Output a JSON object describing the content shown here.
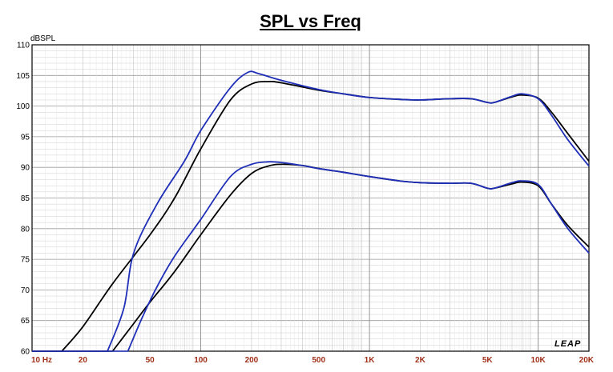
{
  "chart_data": {
    "type": "line",
    "title": "SPL vs Freq",
    "ylabel": "dBSPL",
    "xlabel": "",
    "x_scale": "log",
    "xlim": [
      10,
      20000
    ],
    "ylim": [
      60,
      110
    ],
    "grid": true,
    "brand": "LEAP",
    "y_ticks": [
      60,
      65,
      70,
      75,
      80,
      85,
      90,
      95,
      100,
      105,
      110
    ],
    "x_ticks": [
      {
        "value": 10,
        "label": "10 Hz"
      },
      {
        "value": 20,
        "label": "20"
      },
      {
        "value": 50,
        "label": "50"
      },
      {
        "value": 100,
        "label": "100"
      },
      {
        "value": 200,
        "label": "200"
      },
      {
        "value": 500,
        "label": "500"
      },
      {
        "value": 1000,
        "label": "1K"
      },
      {
        "value": 2000,
        "label": "2K"
      },
      {
        "value": 5000,
        "label": "5K"
      },
      {
        "value": 10000,
        "label": "10K"
      },
      {
        "value": 20000,
        "label": "20K"
      }
    ],
    "series": [
      {
        "color": "#000000",
        "points": [
          [
            15,
            60
          ],
          [
            20,
            64
          ],
          [
            30,
            71
          ],
          [
            50,
            79
          ],
          [
            70,
            85
          ],
          [
            100,
            93
          ],
          [
            150,
            101
          ],
          [
            200,
            103.6
          ],
          [
            250,
            104
          ],
          [
            300,
            103.8
          ],
          [
            500,
            102.6
          ],
          [
            700,
            102
          ],
          [
            1000,
            101.4
          ],
          [
            1500,
            101.1
          ],
          [
            2000,
            101
          ],
          [
            3000,
            101.2
          ],
          [
            4000,
            101.2
          ],
          [
            5000,
            100.6
          ],
          [
            5500,
            100.6
          ],
          [
            7000,
            101.5
          ],
          [
            8000,
            101.8
          ],
          [
            10000,
            101.3
          ],
          [
            12000,
            99
          ],
          [
            15000,
            95.5
          ],
          [
            20000,
            91
          ]
        ]
      },
      {
        "color": "#1f2fb8",
        "points": [
          [
            28,
            60
          ],
          [
            35,
            67
          ],
          [
            40,
            76
          ],
          [
            55,
            84
          ],
          [
            80,
            91
          ],
          [
            100,
            96
          ],
          [
            150,
            103
          ],
          [
            190,
            105.5
          ],
          [
            220,
            105.3
          ],
          [
            300,
            104.2
          ],
          [
            500,
            102.7
          ],
          [
            700,
            102
          ],
          [
            1000,
            101.4
          ],
          [
            1500,
            101.1
          ],
          [
            2000,
            101
          ],
          [
            3000,
            101.2
          ],
          [
            4000,
            101.2
          ],
          [
            5000,
            100.6
          ],
          [
            5500,
            100.6
          ],
          [
            7000,
            101.6
          ],
          [
            8000,
            102
          ],
          [
            10000,
            101.2
          ],
          [
            12000,
            98.5
          ],
          [
            15000,
            94.5
          ],
          [
            20000,
            90.2
          ]
        ]
      },
      {
        "color": "#000000",
        "points": [
          [
            30,
            60
          ],
          [
            40,
            64.5
          ],
          [
            50,
            68
          ],
          [
            70,
            73
          ],
          [
            100,
            79
          ],
          [
            150,
            85.5
          ],
          [
            200,
            89
          ],
          [
            250,
            90.2
          ],
          [
            300,
            90.5
          ],
          [
            400,
            90.3
          ],
          [
            500,
            89.8
          ],
          [
            700,
            89.2
          ],
          [
            1000,
            88.5
          ],
          [
            1500,
            87.8
          ],
          [
            2000,
            87.5
          ],
          [
            3000,
            87.4
          ],
          [
            4000,
            87.4
          ],
          [
            5000,
            86.6
          ],
          [
            5500,
            86.6
          ],
          [
            7000,
            87.3
          ],
          [
            8000,
            87.6
          ],
          [
            10000,
            87
          ],
          [
            12000,
            84
          ],
          [
            15000,
            80.5
          ],
          [
            20000,
            77
          ]
        ]
      },
      {
        "color": "#1f2fb8",
        "points": [
          [
            37,
            60
          ],
          [
            45,
            65.5
          ],
          [
            55,
            70.5
          ],
          [
            70,
            75.5
          ],
          [
            100,
            81.5
          ],
          [
            150,
            88.5
          ],
          [
            200,
            90.5
          ],
          [
            250,
            90.9
          ],
          [
            300,
            90.8
          ],
          [
            400,
            90.3
          ],
          [
            500,
            89.8
          ],
          [
            700,
            89.2
          ],
          [
            1000,
            88.5
          ],
          [
            1500,
            87.8
          ],
          [
            2000,
            87.5
          ],
          [
            3000,
            87.4
          ],
          [
            4000,
            87.4
          ],
          [
            5000,
            86.6
          ],
          [
            5500,
            86.6
          ],
          [
            7000,
            87.5
          ],
          [
            8000,
            87.8
          ],
          [
            10000,
            87.2
          ],
          [
            12000,
            84
          ],
          [
            15000,
            80
          ],
          [
            20000,
            76
          ]
        ]
      }
    ]
  }
}
